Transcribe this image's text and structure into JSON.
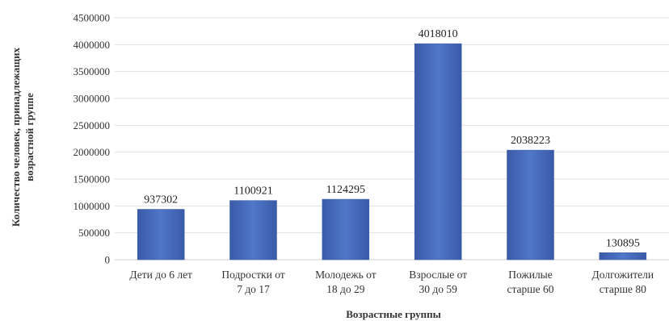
{
  "chart_data": {
    "type": "bar",
    "categories": [
      [
        "Дети до 6 лет"
      ],
      [
        "Подростки от",
        "7 до 17"
      ],
      [
        "Молодежь от",
        "18 до 29"
      ],
      [
        "Взрослые от",
        "30 до 59"
      ],
      [
        "Пожилые",
        "старше 60"
      ],
      [
        "Долгожители",
        "старше 80"
      ]
    ],
    "values": [
      937302,
      1100921,
      1124295,
      4018010,
      2038223,
      130895
    ],
    "data_labels": [
      "937302",
      "1100921",
      "1124295",
      "4018010",
      "2038223",
      "130895"
    ],
    "ylim": [
      0,
      4500000
    ],
    "yticks": [
      0,
      500000,
      1000000,
      1500000,
      2000000,
      2500000,
      3000000,
      3500000,
      4000000,
      4500000
    ],
    "ytick_labels": [
      "0",
      "500000",
      "1000000",
      "1500000",
      "2000000",
      "2500000",
      "3000000",
      "3500000",
      "4000000",
      "4500000"
    ],
    "xlabel": "Возрастные группы",
    "ylabel_lines": [
      "Количество человек, принадлежащих",
      "возрастной группе"
    ],
    "grid": true,
    "legend": "none",
    "bar_color": "#4a6fc0",
    "bar_color_dark": "#3a5aa8"
  }
}
